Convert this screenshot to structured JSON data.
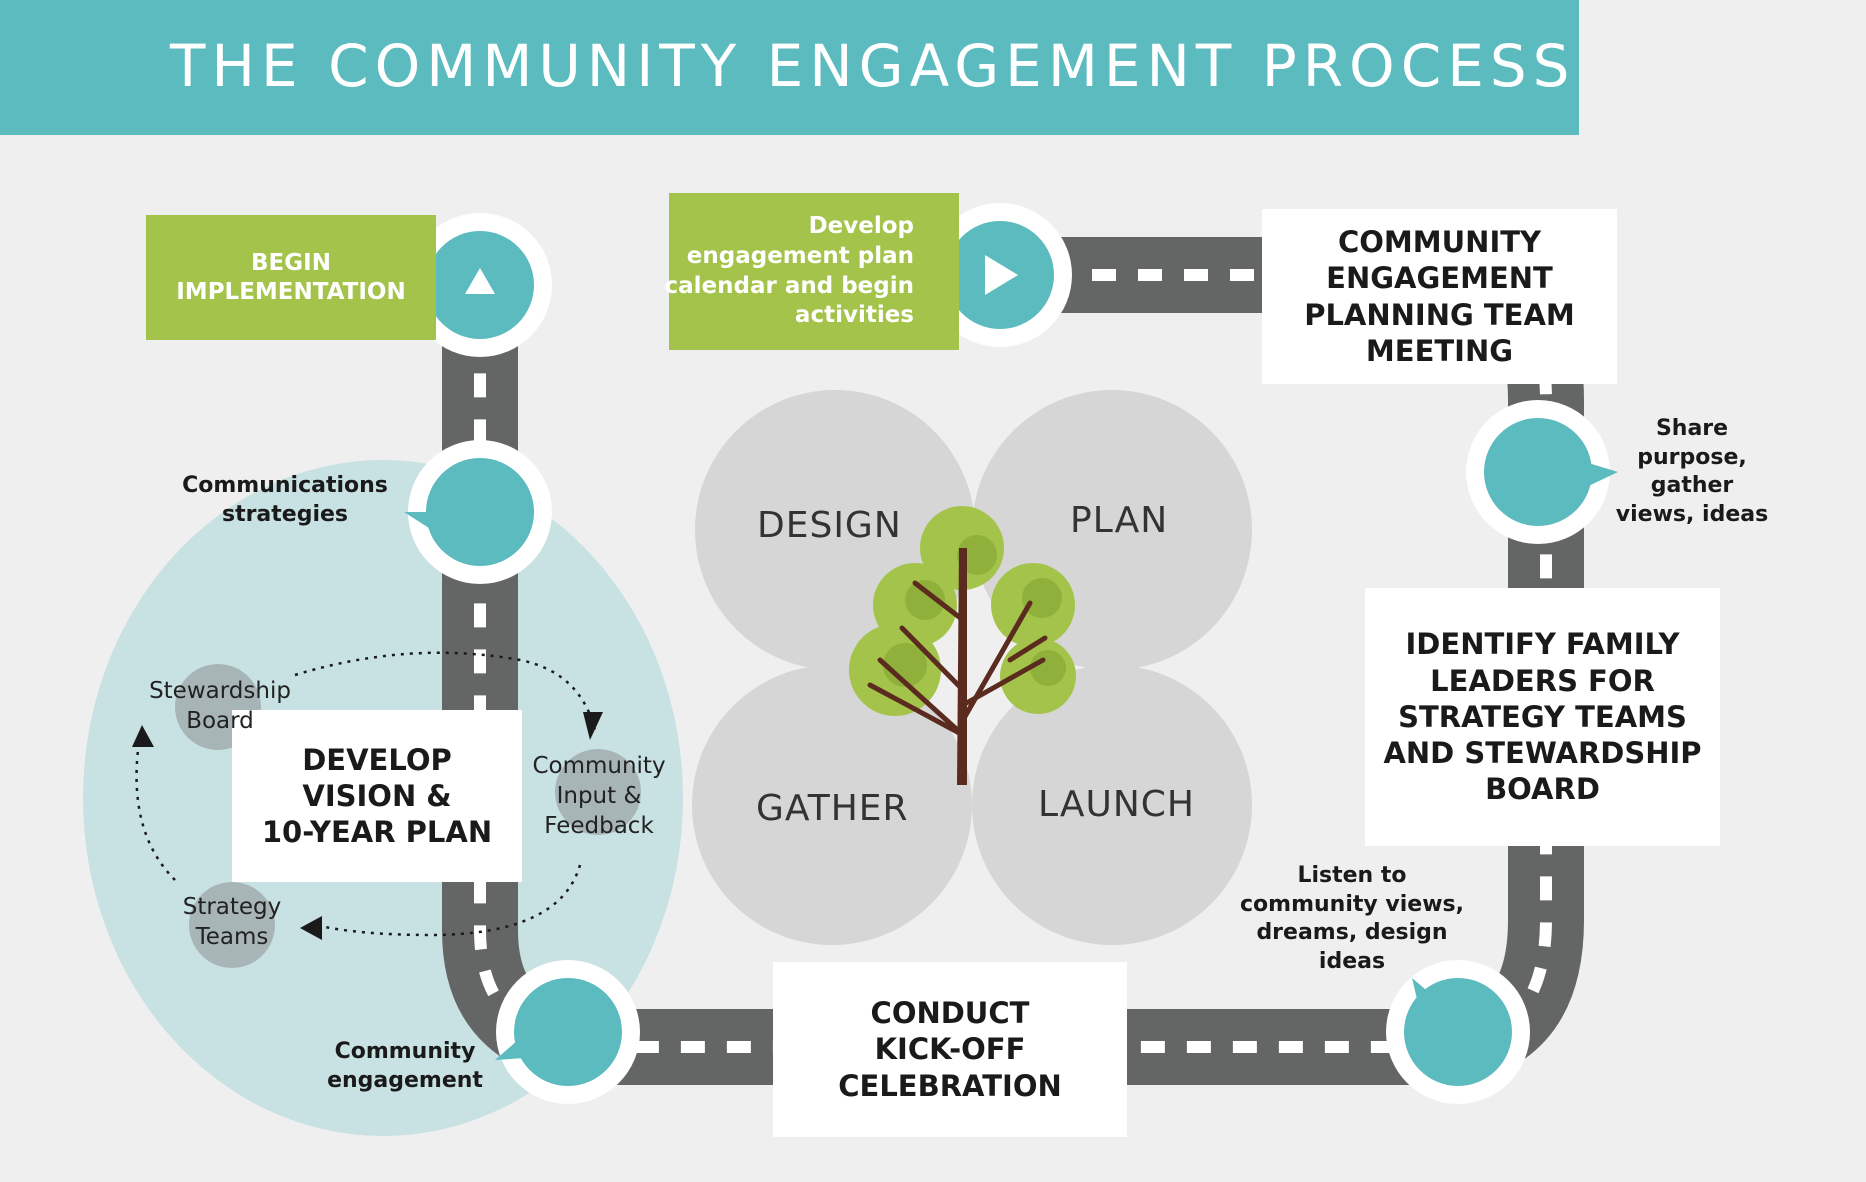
{
  "title": "THE COMMUNITY ENGAGEMENT PROCESS",
  "colors": {
    "banner": "#5bbbbf",
    "teal_node": "#5bbbbf",
    "green_box": "#a4c34a",
    "road": "#646565",
    "oval": "#c8e1e3",
    "phase_circle": "#d6d6d6",
    "tree_leaf": "#a4c34a",
    "tree_trunk": "#5a2b1e"
  },
  "steps": {
    "planning_meeting": [
      "COMMUNITY",
      "ENGAGEMENT",
      "PLANNING TEAM",
      "MEETING"
    ],
    "identify_leaders": [
      "IDENTIFY FAMILY",
      "LEADERS FOR",
      "STRATEGY TEAMS",
      "AND STEWARDSHIP",
      "BOARD"
    ],
    "kickoff": [
      "CONDUCT",
      "KICK-OFF",
      "CELEBRATION"
    ],
    "develop_vision": [
      "DEVELOP",
      "VISION &",
      "10-YEAR PLAN"
    ]
  },
  "green_boxes": {
    "develop_plan": [
      "Develop",
      "engagement plan",
      "calendar and begin",
      "activities"
    ],
    "begin_implementation": [
      "BEGIN",
      "IMPLEMENTATION"
    ]
  },
  "callouts": {
    "share": [
      "Share",
      "purpose,",
      "gather",
      "views, ideas"
    ],
    "listen": [
      "Listen to",
      "community views,",
      "dreams, design",
      "ideas"
    ],
    "community_engagement": [
      "Community",
      "engagement"
    ],
    "communications": [
      "Communications",
      "strategies"
    ]
  },
  "cycle": {
    "stewardship": [
      "Stewardship",
      "Board"
    ],
    "input": [
      "Community",
      "Input &",
      "Feedback"
    ],
    "strategy": [
      "Strategy",
      "Teams"
    ]
  },
  "phases": {
    "design": "DESIGN",
    "plan": "PLAN",
    "gather": "GATHER",
    "launch": "LAUNCH"
  },
  "icons": {
    "start": "play-icon",
    "implementation": "triangle-up-icon"
  }
}
